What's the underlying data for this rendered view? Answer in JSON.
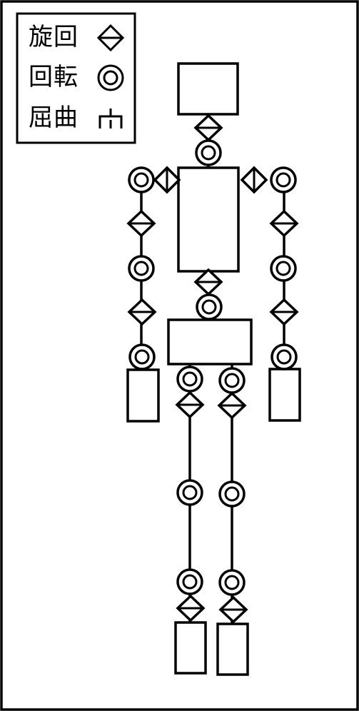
{
  "legend": {
    "items": [
      {
        "label": "旋回",
        "symbol": "diamond-joint-icon"
      },
      {
        "label": "回転",
        "symbol": "ring-joint-icon"
      },
      {
        "label": "屈曲",
        "symbol": "bend-joint-icon"
      }
    ]
  },
  "colors": {
    "stroke": "#000000",
    "background": "#ffffff"
  }
}
